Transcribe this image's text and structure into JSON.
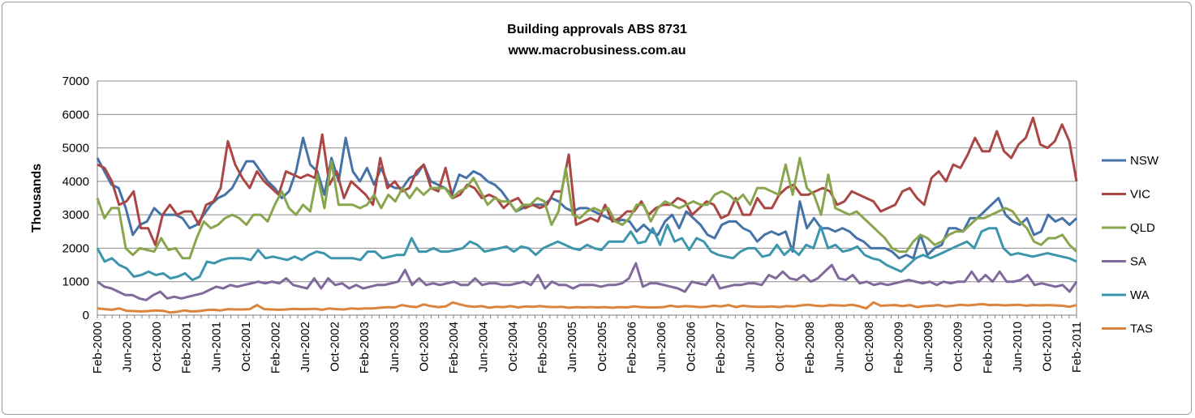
{
  "chart_data": {
    "type": "line",
    "title": "Building approvals ABS 8731",
    "subtitle": "www.macrobusiness.com.au",
    "xlabel": "",
    "ylabel": "Thousands",
    "ylim": [
      0,
      7000
    ],
    "yticks": [
      0,
      1000,
      2000,
      3000,
      4000,
      5000,
      6000,
      7000
    ],
    "grid": true,
    "legend": "right",
    "x_start": "Feb-2000",
    "x_end": "Feb-2011",
    "xtick_labels": [
      "Feb-2000",
      "Jun-2000",
      "Oct-2000",
      "Feb-2001",
      "Jun-2001",
      "Oct-2001",
      "Feb-2002",
      "Jun-2002",
      "Oct-2002",
      "Feb-2003",
      "Jun-2003",
      "Oct-2003",
      "Feb-2004",
      "Jun-2004",
      "Oct-2004",
      "Feb-2005",
      "Jun-2005",
      "Oct-2005",
      "Feb-2006",
      "Jun-2006",
      "Oct-2006",
      "Feb-2007",
      "Jun-2007",
      "Oct-2007",
      "Feb-2008",
      "Jun-2008",
      "Oct-2008",
      "Feb-2009",
      "Jun-2009",
      "Oct-2009",
      "Feb-2010",
      "Jun-2010",
      "Oct-2010",
      "Feb-2011"
    ],
    "series": [
      {
        "name": "NSW",
        "color": "#4572a7",
        "values": [
          4700,
          4300,
          3900,
          3800,
          3200,
          2400,
          2700,
          2800,
          3200,
          3000,
          3000,
          3000,
          2900,
          2600,
          2700,
          3000,
          3300,
          3500,
          3600,
          3800,
          4200,
          4600,
          4600,
          4300,
          4000,
          3800,
          3500,
          3700,
          4300,
          5300,
          4500,
          4300,
          3600,
          4700,
          4000,
          5300,
          4300,
          4000,
          4400,
          3900,
          4400,
          3900,
          3800,
          3800,
          4100,
          4200,
          4500,
          4000,
          3900,
          3800,
          3600,
          4200,
          4100,
          4300,
          4200,
          4000,
          3900,
          3700,
          3400,
          3100,
          3200,
          3300,
          3300,
          3300,
          3500,
          3400,
          3200,
          3100,
          3200,
          3200,
          3100,
          3000,
          2900,
          2800,
          2850,
          2800,
          2500,
          2700,
          2500,
          2400,
          2800,
          3000,
          2600,
          3100,
          2900,
          2700,
          2400,
          2300,
          2700,
          2800,
          2800,
          2600,
          2500,
          2200,
          2400,
          2500,
          2400,
          2500,
          1900,
          3400,
          2600,
          2900,
          2600,
          2600,
          2500,
          2600,
          2500,
          2300,
          2200,
          2000,
          2000,
          2000,
          1900,
          1700,
          1800,
          1700,
          2400,
          1800,
          2000,
          2100,
          2600,
          2600,
          2500,
          2900,
          2900,
          3100,
          3300,
          3500,
          3000,
          2800,
          2700,
          2900,
          2400,
          2500,
          3000,
          2800,
          2900,
          2700,
          2900
        ]
      },
      {
        "name": "VIC",
        "color": "#aa4643",
        "values": [
          4500,
          4400,
          4000,
          3300,
          3400,
          3700,
          2600,
          2600,
          2100,
          3000,
          3300,
          3000,
          3100,
          3100,
          2700,
          3300,
          3400,
          3800,
          5200,
          4500,
          4100,
          3800,
          4300,
          4000,
          3800,
          3600,
          4300,
          4200,
          4100,
          4200,
          4100,
          5400,
          3900,
          4300,
          3500,
          4000,
          3800,
          3600,
          3300,
          4700,
          3800,
          4000,
          3700,
          3800,
          4300,
          4500,
          3800,
          3700,
          4400,
          3500,
          3600,
          3900,
          3800,
          3500,
          3600,
          3500,
          3200,
          3400,
          3500,
          3200,
          3300,
          3200,
          3300,
          3700,
          3700,
          4800,
          2700,
          2800,
          2900,
          2800,
          3300,
          2800,
          2900,
          3100,
          3100,
          3400,
          3000,
          3200,
          3300,
          3300,
          3500,
          3400,
          3000,
          3200,
          3400,
          3300,
          2900,
          3000,
          3500,
          3000,
          3000,
          3500,
          3200,
          3200,
          3600,
          3800,
          3900,
          3600,
          3600,
          3700,
          3800,
          3700,
          3300,
          3400,
          3700,
          3600,
          3500,
          3400,
          3100,
          3200,
          3300,
          3700,
          3800,
          3500,
          3300,
          4100,
          4300,
          4000,
          4500,
          4400,
          4800,
          5300,
          4900,
          4900,
          5500,
          4900,
          4700,
          5100,
          5300,
          5900,
          5100,
          5000,
          5200,
          5700,
          5200,
          4000
        ]
      },
      {
        "name": "QLD",
        "color": "#89a54e",
        "values": [
          3500,
          2900,
          3200,
          3200,
          2000,
          1800,
          2000,
          1950,
          1900,
          2300,
          1950,
          2000,
          1700,
          1700,
          2300,
          2800,
          2600,
          2700,
          2900,
          3000,
          2900,
          2700,
          3000,
          3000,
          2800,
          3300,
          3700,
          3200,
          3000,
          3300,
          3100,
          4200,
          3200,
          4600,
          3300,
          3300,
          3300,
          3200,
          3300,
          3600,
          3200,
          3600,
          3400,
          3800,
          3500,
          3800,
          3600,
          3800,
          3800,
          3800,
          3500,
          3700,
          3800,
          4100,
          3700,
          3300,
          3500,
          3400,
          3400,
          3100,
          3300,
          3300,
          3500,
          3400,
          2700,
          3100,
          4400,
          3000,
          2900,
          3100,
          3200,
          3100,
          3200,
          2800,
          2700,
          2900,
          3300,
          3300,
          2800,
          3200,
          3400,
          3300,
          3200,
          3300,
          3400,
          3300,
          3300,
          3600,
          3700,
          3600,
          3400,
          3600,
          3300,
          3800,
          3800,
          3700,
          3600,
          4500,
          3600,
          4700,
          3800,
          3600,
          3000,
          4200,
          3200,
          3100,
          3000,
          3100,
          2900,
          2700,
          2500,
          2300,
          2000,
          1900,
          1900,
          2200,
          2400,
          2300,
          2100,
          2200,
          2400,
          2500,
          2500,
          2700,
          2900,
          2900,
          3000,
          3100,
          3200,
          3100,
          2800,
          2600,
          2200,
          2100,
          2300,
          2300,
          2400,
          2100,
          1900
        ]
      },
      {
        "name": "SA",
        "color": "#80699b",
        "values": [
          1000,
          850,
          800,
          700,
          600,
          600,
          500,
          450,
          600,
          700,
          500,
          550,
          500,
          550,
          600,
          650,
          750,
          850,
          800,
          900,
          850,
          900,
          950,
          1000,
          950,
          1000,
          950,
          1100,
          900,
          850,
          800,
          1100,
          800,
          1100,
          900,
          950,
          800,
          900,
          800,
          850,
          900,
          900,
          950,
          1000,
          1350,
          900,
          1100,
          900,
          950,
          900,
          950,
          1000,
          900,
          900,
          1100,
          900,
          950,
          950,
          900,
          900,
          950,
          1000,
          900,
          1200,
          800,
          1000,
          900,
          900,
          800,
          900,
          900,
          900,
          850,
          900,
          900,
          950,
          1100,
          1550,
          850,
          950,
          950,
          900,
          850,
          800,
          700,
          1000,
          950,
          900,
          1200,
          800,
          850,
          900,
          900,
          950,
          950,
          900,
          1200,
          1100,
          1300,
          1100,
          1050,
          1200,
          1000,
          1100,
          1300,
          1500,
          1100,
          1050,
          1200,
          950,
          1000,
          900,
          950,
          900,
          950,
          1000,
          1050,
          1000,
          950,
          1000,
          900,
          1000,
          950,
          1000,
          1000,
          1300,
          1000,
          1200,
          1000,
          1300,
          1000,
          1000,
          1050,
          1200,
          900,
          950,
          900,
          850,
          900,
          700,
          1000
        ]
      },
      {
        "name": "WA",
        "color": "#3d96ae",
        "values": [
          2000,
          1600,
          1700,
          1500,
          1400,
          1150,
          1200,
          1300,
          1200,
          1250,
          1100,
          1150,
          1250,
          1050,
          1150,
          1600,
          1550,
          1650,
          1700,
          1700,
          1700,
          1650,
          1950,
          1700,
          1750,
          1700,
          1650,
          1750,
          1650,
          1800,
          1900,
          1850,
          1700,
          1700,
          1700,
          1700,
          1650,
          1900,
          1900,
          1700,
          1750,
          1800,
          1800,
          2300,
          1900,
          1900,
          2000,
          1900,
          1900,
          1950,
          2000,
          2200,
          2100,
          1900,
          1950,
          2000,
          2050,
          1900,
          2050,
          2000,
          1800,
          2000,
          2100,
          2200,
          2100,
          2000,
          1950,
          2100,
          2000,
          1950,
          2200,
          2200,
          2200,
          2500,
          2150,
          2200,
          2600,
          2100,
          2700,
          2200,
          2300,
          1950,
          2300,
          2200,
          1900,
          1800,
          1750,
          1700,
          1900,
          2000,
          2000,
          1750,
          1800,
          2100,
          1800,
          2000,
          1800,
          2100,
          2000,
          2650,
          2000,
          2100,
          1900,
          1950,
          2050,
          1800,
          1700,
          1650,
          1500,
          1400,
          1300,
          1500,
          1700,
          1800,
          1700,
          1800,
          1900,
          2000,
          2100,
          2200,
          2000,
          2500,
          2600,
          2600,
          2000,
          1800,
          1850,
          1800,
          1750,
          1800,
          1850,
          1800,
          1750,
          1700,
          1600
        ]
      },
      {
        "name": "TAS",
        "color": "#db843d",
        "values": [
          200,
          180,
          160,
          200,
          130,
          120,
          110,
          120,
          140,
          130,
          80,
          100,
          140,
          110,
          120,
          150,
          160,
          140,
          180,
          170,
          170,
          180,
          300,
          180,
          170,
          160,
          170,
          190,
          180,
          180,
          190,
          160,
          200,
          180,
          170,
          200,
          190,
          200,
          200,
          220,
          240,
          230,
          300,
          260,
          240,
          320,
          270,
          240,
          260,
          380,
          320,
          270,
          250,
          270,
          220,
          250,
          240,
          270,
          230,
          260,
          250,
          270,
          250,
          240,
          250,
          220,
          240,
          230,
          240,
          230,
          240,
          220,
          240,
          230,
          260,
          240,
          230,
          230,
          240,
          280,
          250,
          270,
          260,
          240,
          250,
          280,
          260,
          300,
          240,
          280,
          260,
          250,
          250,
          260,
          240,
          270,
          260,
          290,
          310,
          280,
          270,
          300,
          290,
          280,
          310,
          270,
          200,
          380,
          280,
          290,
          300,
          270,
          300,
          240,
          270,
          280,
          300,
          260,
          280,
          310,
          290,
          310,
          330,
          300,
          310,
          290,
          300,
          310,
          280,
          300,
          290,
          300,
          290,
          280,
          250,
          300
        ]
      }
    ]
  }
}
